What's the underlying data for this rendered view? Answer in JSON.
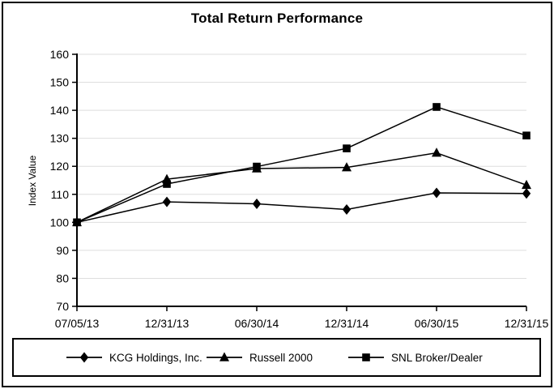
{
  "page": {
    "background": "#ffffff",
    "border_color": "#000000"
  },
  "chart_data": {
    "type": "line",
    "title": "Total Return Performance",
    "ylabel": "Index Value",
    "xlabel": "",
    "x_categories": [
      "07/05/13",
      "12/31/13",
      "06/30/14",
      "12/31/14",
      "06/30/15",
      "12/31/15"
    ],
    "ylim": [
      70,
      160
    ],
    "ytick_step": 10,
    "yticks": [
      70,
      80,
      90,
      100,
      110,
      120,
      130,
      140,
      150,
      160
    ],
    "grid": "horizontal gridlines on",
    "legend_position": "bottom, boxed",
    "colors": {
      "line": "#000000",
      "grid": "#dedede",
      "axis": "#000000",
      "text": "#000000"
    },
    "series": [
      {
        "name": "KCG Holdings, Inc.",
        "marker": "diamond",
        "values": [
          100,
          107.3,
          106.6,
          104.6,
          110.5,
          110.3
        ]
      },
      {
        "name": "Russell 2000",
        "marker": "triangle",
        "values": [
          100,
          115.4,
          119.2,
          119.6,
          124.8,
          113.3
        ]
      },
      {
        "name": "SNL Broker/Dealer",
        "marker": "square",
        "values": [
          100,
          113.7,
          119.9,
          126.4,
          141.2,
          131.0
        ]
      }
    ]
  }
}
